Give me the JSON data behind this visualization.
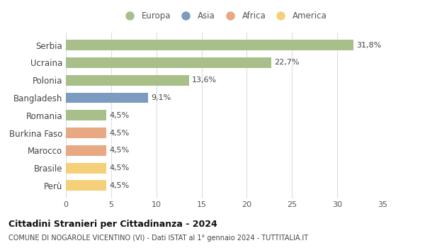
{
  "categories": [
    "Serbia",
    "Ucraina",
    "Polonia",
    "Bangladesh",
    "Romania",
    "Burkina Faso",
    "Marocco",
    "Brasile",
    "Perù"
  ],
  "values": [
    31.8,
    22.7,
    13.6,
    9.1,
    4.5,
    4.5,
    4.5,
    4.5,
    4.5
  ],
  "labels": [
    "31,8%",
    "22,7%",
    "13,6%",
    "9,1%",
    "4,5%",
    "4,5%",
    "4,5%",
    "4,5%",
    "4,5%"
  ],
  "colors": [
    "#a8bf8a",
    "#a8bf8a",
    "#a8bf8a",
    "#7b9bbf",
    "#a8bf8a",
    "#e8a882",
    "#e8a882",
    "#f5d07a",
    "#f5d07a"
  ],
  "legend": [
    {
      "label": "Europa",
      "color": "#a8bf8a"
    },
    {
      "label": "Asia",
      "color": "#7b9bbf"
    },
    {
      "label": "Africa",
      "color": "#e8a882"
    },
    {
      "label": "America",
      "color": "#f5d07a"
    }
  ],
  "xlim": [
    0,
    35
  ],
  "xticks": [
    0,
    5,
    10,
    15,
    20,
    25,
    30,
    35
  ],
  "title": "Cittadini Stranieri per Cittadinanza - 2024",
  "subtitle": "COMUNE DI NOGAROLE VICENTINO (VI) - Dati ISTAT al 1° gennaio 2024 - TUTTITALIA.IT",
  "background_color": "#ffffff",
  "grid_color": "#d8dfe8"
}
